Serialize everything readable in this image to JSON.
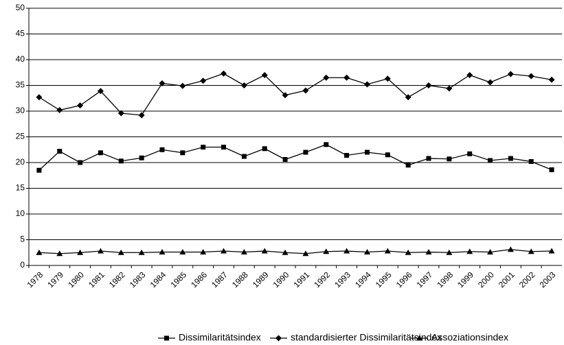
{
  "chart_data": {
    "type": "line",
    "categories": [
      "1978",
      "1979",
      "1980",
      "1981",
      "1982",
      "1983",
      "1984",
      "1985",
      "1986",
      "1987",
      "1988",
      "1989",
      "1990",
      "1991",
      "1992",
      "1993",
      "1994",
      "1995",
      "1996",
      "1997",
      "1998",
      "1999",
      "2000",
      "2001",
      "2002",
      "2003"
    ],
    "series": [
      {
        "name": "Dissimilaritätsindex",
        "color": "#000000",
        "marker": "square",
        "values": [
          18.5,
          22.2,
          20,
          21.9,
          20.3,
          20.9,
          22.5,
          21.9,
          23,
          23,
          21.2,
          22.7,
          20.6,
          22,
          23.5,
          21.4,
          22,
          21.5,
          19.5,
          20.8,
          20.7,
          21.7,
          20.4,
          20.8,
          20.2,
          18.6
        ]
      },
      {
        "name": "standardisierter Dissimilaritätsindex",
        "color": "#000000",
        "marker": "diamond",
        "values": [
          32.7,
          30.2,
          31.1,
          33.9,
          29.6,
          29.2,
          35.4,
          34.9,
          35.9,
          37.3,
          35,
          37,
          33.1,
          34,
          36.5,
          36.5,
          35.2,
          36.3,
          32.7,
          35,
          34.4,
          37,
          35.6,
          37.2,
          36.8,
          36.1
        ]
      },
      {
        "name": "Assoziationsindex",
        "color": "#000000",
        "marker": "triangle",
        "values": [
          2.5,
          2.3,
          2.5,
          2.8,
          2.5,
          2.5,
          2.6,
          2.6,
          2.6,
          2.8,
          2.6,
          2.8,
          2.5,
          2.3,
          2.7,
          2.8,
          2.6,
          2.8,
          2.5,
          2.6,
          2.5,
          2.7,
          2.6,
          3.1,
          2.7,
          2.8
        ]
      }
    ],
    "ylim": [
      0,
      50
    ],
    "yticks": [
      0,
      5,
      10,
      15,
      20,
      25,
      30,
      35,
      40,
      45,
      50
    ],
    "grid": true,
    "legend": "bottom"
  }
}
